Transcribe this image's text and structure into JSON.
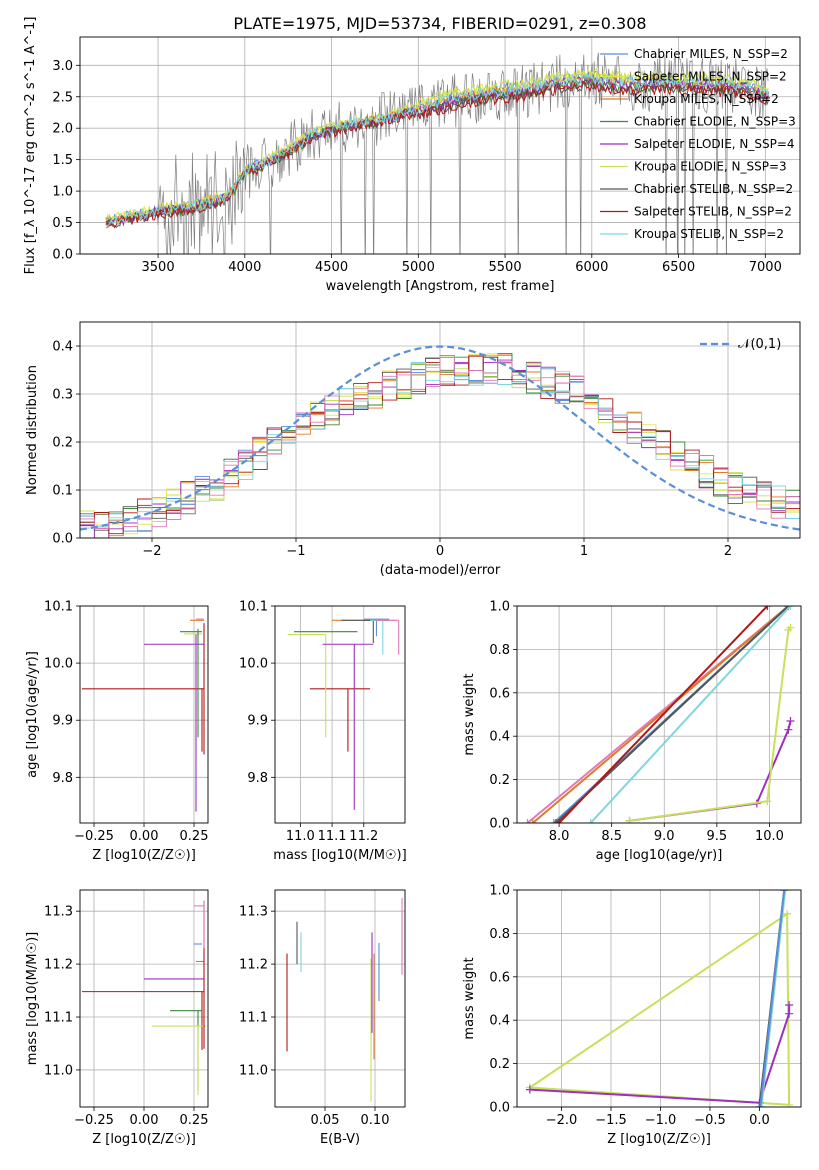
{
  "title": "PLATE=1975, MJD=53734, FIBERID=0291, z=0.308",
  "colors": {
    "chabrier_miles": "#5b8fd9",
    "salpeter_miles": "#e8e24a",
    "kroupa_miles": "#e07a2a",
    "chabrier_elodie": "#3a8a3a",
    "salpeter_elodie": "#9c2fbf",
    "kroupa_elodie": "#c8e05a",
    "chabrier_stelib": "#555555",
    "salpeter_stelib": "#b01818",
    "kroupa_stelib": "#7fd6dd",
    "extra_pink": "#e07ab8",
    "data": "#808080",
    "gaussian": "#5b8fd9",
    "grid": "#b0b0b0"
  },
  "chart_data": [
    {
      "id": "spectrum",
      "type": "line",
      "xlabel": "wavelength [Angstrom, rest frame]",
      "ylabel": "Flux [f_λ 10^-17 erg cm^-2 s^-1 A^-1]",
      "xlim": [
        3050,
        7200
      ],
      "ylim": [
        0,
        3.45
      ],
      "xticks": [
        3500,
        4000,
        4500,
        5000,
        5500,
        6000,
        6500,
        7000
      ],
      "yticks": [
        0.0,
        0.5,
        1.0,
        1.5,
        2.0,
        2.5,
        3.0
      ],
      "legend_position": "upper right",
      "continuum_x": [
        3200,
        3500,
        3700,
        3900,
        4000,
        4200,
        4400,
        4600,
        4800,
        5000,
        5200,
        5400,
        5600,
        5800,
        6000,
        6200,
        6400,
        6600,
        6800,
        7000
      ],
      "continuum_y": [
        0.5,
        0.68,
        0.75,
        0.9,
        1.3,
        1.55,
        1.9,
        2.05,
        2.15,
        2.3,
        2.45,
        2.55,
        2.6,
        2.72,
        2.78,
        2.7,
        2.72,
        2.7,
        2.68,
        2.55
      ],
      "series": [
        {
          "name": "Chabrier MILES, N_SSP=2",
          "color_key": "chabrier_miles"
        },
        {
          "name": "Salpeter MILES, N_SSP=2",
          "color_key": "salpeter_miles"
        },
        {
          "name": "Kroupa MILES, N_SSP=2",
          "color_key": "kroupa_miles"
        },
        {
          "name": "Chabrier ELODIE, N_SSP=3",
          "color_key": "chabrier_elodie"
        },
        {
          "name": "Salpeter ELODIE, N_SSP=4",
          "color_key": "salpeter_elodie"
        },
        {
          "name": "Kroupa ELODIE, N_SSP=3",
          "color_key": "kroupa_elodie"
        },
        {
          "name": "Chabrier STELIB, N_SSP=2",
          "color_key": "chabrier_stelib"
        },
        {
          "name": "Salpeter STELIB, N_SSP=2",
          "color_key": "salpeter_stelib"
        },
        {
          "name": "Kroupa STELIB, N_SSP=2",
          "color_key": "kroupa_stelib"
        }
      ]
    },
    {
      "id": "residuals",
      "type": "line",
      "xlabel": "(data-model)/error",
      "ylabel": "Normed distribution",
      "xlim": [
        -2.5,
        2.5
      ],
      "ylim": [
        0,
        0.45
      ],
      "xticks": [
        -2,
        -1,
        0,
        1,
        2
      ],
      "yticks": [
        0.0,
        0.1,
        0.2,
        0.3,
        0.4
      ],
      "legend": "𝒩(0,1)",
      "legend_position": "upper right",
      "gaussian": {
        "mean": 0,
        "sigma": 1
      },
      "hist_bin_width": 0.1,
      "hist_envelope_x": [
        -2.5,
        -2.0,
        -1.5,
        -1.0,
        -0.5,
        0.0,
        0.5,
        1.0,
        1.5,
        2.0,
        2.5
      ],
      "hist_envelope_y": [
        0.02,
        0.05,
        0.12,
        0.23,
        0.3,
        0.35,
        0.35,
        0.3,
        0.2,
        0.11,
        0.06
      ]
    },
    {
      "id": "age_vs_Z",
      "type": "scatter",
      "xlabel": "Z [log10(Z/Z☉)]",
      "ylabel": "age  [log10(age/yr)]",
      "xlim": [
        -0.32,
        0.32
      ],
      "ylim": [
        9.72,
        10.1
      ],
      "xticks": [
        -0.25,
        0.0,
        0.25
      ],
      "yticks": [
        9.8,
        9.9,
        10.0,
        10.1
      ],
      "points": [
        {
          "color_key": "salpeter_stelib",
          "x": 0.29,
          "y": 9.955,
          "xerr_low": 0.6,
          "xerr_high": 0.01,
          "yerr_low": 0.11,
          "yerr_high": 0.0
        },
        {
          "color_key": "salpeter_elodie",
          "x": 0.29,
          "y": 10.033,
          "xerr_low": 0.29,
          "xerr_high": 0.01,
          "yerr_low": 0.0,
          "yerr_high": 0.0
        },
        {
          "color_key": "kroupa_elodie",
          "x": 0.27,
          "y": 10.051,
          "xerr_low": 0.07,
          "xerr_high": 0.02,
          "yerr_low": 0.0,
          "yerr_high": 0.0
        },
        {
          "color_key": "chabrier_elodie",
          "x": 0.27,
          "y": 10.055,
          "xerr_low": 0.09,
          "xerr_high": 0.02,
          "yerr_low": 0.0,
          "yerr_high": 0.0
        },
        {
          "color_key": "kroupa_miles",
          "x": 0.29,
          "y": 10.075,
          "xerr_low": 0.06,
          "xerr_high": 0.01,
          "yerr_low": 0.0,
          "yerr_high": 0.0
        },
        {
          "color_key": "extra_pink",
          "x": 0.3,
          "y": 10.077,
          "xerr_low": 0.04,
          "xerr_high": 0.0,
          "yerr_low": 0.0,
          "yerr_high": 0.0
        },
        {
          "color_key": "salpeter_elodie",
          "x": 0.26,
          "y": 10.05,
          "xerr_low": 0.0,
          "xerr_high": 0.0,
          "yerr_low": 0.31,
          "yerr_high": 0.0
        },
        {
          "color_key": "chabrier_elodie",
          "x": 0.27,
          "y": 10.06,
          "xerr_low": 0.0,
          "xerr_high": 0.0,
          "yerr_low": 0.19,
          "yerr_high": 0.0
        },
        {
          "color_key": "salpeter_stelib",
          "x": 0.3,
          "y": 10.07,
          "xerr_low": 0.0,
          "xerr_high": 0.0,
          "yerr_low": 0.23,
          "yerr_high": 0.0
        }
      ]
    },
    {
      "id": "age_vs_mass",
      "type": "scatter",
      "xlabel": "mass [log10(M/M☉)]",
      "ylabel": "",
      "xlim": [
        10.92,
        11.33
      ],
      "ylim": [
        9.72,
        10.1
      ],
      "xticks": [
        11.0,
        11.1,
        11.2
      ],
      "yticks": [
        9.8,
        9.9,
        10.0,
        10.1
      ],
      "points": [
        {
          "color_key": "salpeter_stelib",
          "x": 11.15,
          "y": 9.955,
          "xerr_low": 0.12,
          "xerr_high": 0.07,
          "yerr_low": 0.11,
          "yerr_high": 0.0
        },
        {
          "color_key": "kroupa_elodie",
          "x": 11.08,
          "y": 10.05,
          "xerr_low": 0.12,
          "xerr_high": 0.0,
          "yerr_low": 0.18,
          "yerr_high": 0.0
        },
        {
          "color_key": "chabrier_elodie",
          "x": 11.12,
          "y": 10.055,
          "xerr_low": 0.14,
          "xerr_high": 0.06,
          "yerr_low": 0.0,
          "yerr_high": 0.0
        },
        {
          "color_key": "salpeter_elodie",
          "x": 11.17,
          "y": 10.033,
          "xerr_low": 0.1,
          "xerr_high": 0.06,
          "yerr_low": 0.29,
          "yerr_high": 0.0
        },
        {
          "color_key": "kroupa_miles",
          "x": 11.2,
          "y": 10.075,
          "xerr_low": 0.1,
          "xerr_high": 0.05,
          "yerr_low": 0.0,
          "yerr_high": 0.0
        },
        {
          "color_key": "chabrier_stelib",
          "x": 11.23,
          "y": 10.075,
          "xerr_low": 0.1,
          "xerr_high": 0.05,
          "yerr_low": 0.04,
          "yerr_high": 0.0
        },
        {
          "color_key": "chabrier_miles",
          "x": 11.24,
          "y": 10.077,
          "xerr_low": 0.04,
          "xerr_high": 0.04,
          "yerr_low": 0.03,
          "yerr_high": 0.0
        },
        {
          "color_key": "kroupa_stelib",
          "x": 11.26,
          "y": 10.075,
          "xerr_low": 0.04,
          "xerr_high": 0.04,
          "yerr_low": 0.06,
          "yerr_high": 0.0
        },
        {
          "color_key": "extra_pink",
          "x": 11.31,
          "y": 10.075,
          "xerr_low": 0.07,
          "xerr_high": 0.0,
          "yerr_low": 0.06,
          "yerr_high": 0.0
        }
      ]
    },
    {
      "id": "weight_vs_age",
      "type": "line",
      "xlabel": "age  [log10(age/yr)]",
      "ylabel": "mass weight",
      "xlim": [
        7.6,
        10.3
      ],
      "ylim": [
        0,
        1.0
      ],
      "xticks": [
        8.0,
        8.5,
        9.0,
        9.5,
        10.0
      ],
      "yticks": [
        0.0,
        0.2,
        0.4,
        0.6,
        0.8,
        1.0
      ],
      "series": [
        {
          "color_key": "extra_pink",
          "x": [
            7.7,
            10.18
          ],
          "y": [
            0.0,
            1.0
          ]
        },
        {
          "color_key": "kroupa_miles",
          "x": [
            7.75,
            10.18
          ],
          "y": [
            0.0,
            1.0
          ]
        },
        {
          "color_key": "chabrier_miles",
          "x": [
            7.95,
            10.18
          ],
          "y": [
            0.0,
            1.0
          ]
        },
        {
          "color_key": "chabrier_stelib",
          "x": [
            7.97,
            10.18
          ],
          "y": [
            0.0,
            1.0
          ]
        },
        {
          "color_key": "salpeter_stelib",
          "x": [
            8.0,
            9.98
          ],
          "y": [
            0.0,
            1.0
          ]
        },
        {
          "color_key": "kroupa_stelib",
          "x": [
            8.3,
            10.2
          ],
          "y": [
            0.0,
            1.0
          ]
        },
        {
          "color_key": "salpeter_elodie",
          "x": [
            8.67,
            9.88,
            10.18,
            10.2
          ],
          "y": [
            0.01,
            0.09,
            0.43,
            0.47
          ]
        },
        {
          "color_key": "kroupa_elodie",
          "x": [
            8.67,
            9.98,
            10.18,
            10.2
          ],
          "y": [
            0.01,
            0.1,
            0.89,
            0.9
          ]
        }
      ]
    },
    {
      "id": "mass_vs_Z",
      "type": "scatter",
      "xlabel": "Z [log10(Z/Z☉)]",
      "ylabel": "mass [log10(M/M☉)]",
      "xlim": [
        -0.32,
        0.32
      ],
      "ylim": [
        10.93,
        11.34
      ],
      "xticks": [
        -0.25,
        0.0,
        0.25
      ],
      "yticks": [
        11.0,
        11.1,
        11.2,
        11.3
      ],
      "points": [
        {
          "color_key": "salpeter_stelib",
          "x": 0.29,
          "y": 11.148,
          "xerr_low": 0.6,
          "xerr_high": 0.01,
          "yerr_low": 0.11,
          "yerr_high": 0.0
        },
        {
          "color_key": "salpeter_elodie",
          "x": 0.29,
          "y": 11.172,
          "xerr_low": 0.29,
          "xerr_high": 0.01,
          "yerr_low": 0.0,
          "yerr_high": 0.0
        },
        {
          "color_key": "chabrier_elodie",
          "x": 0.27,
          "y": 11.112,
          "xerr_low": 0.14,
          "xerr_high": 0.02,
          "yerr_low": 0.15,
          "yerr_high": 0.0
        },
        {
          "color_key": "kroupa_elodie",
          "x": 0.27,
          "y": 11.083,
          "xerr_low": 0.23,
          "xerr_high": 0.04,
          "yerr_low": 0.13,
          "yerr_high": 0.0
        },
        {
          "color_key": "kroupa_miles",
          "x": 0.29,
          "y": 11.205,
          "xerr_low": 0.03,
          "xerr_high": 0.01,
          "yerr_low": 0.0,
          "yerr_high": 0.0
        },
        {
          "color_key": "chabrier_miles",
          "x": 0.28,
          "y": 11.238,
          "xerr_low": 0.03,
          "xerr_high": 0.01,
          "yerr_low": 0.0,
          "yerr_high": 0.0
        },
        {
          "color_key": "extra_pink",
          "x": 0.3,
          "y": 11.31,
          "xerr_low": 0.05,
          "xerr_high": 0.0,
          "yerr_low": 0.0,
          "yerr_high": 0.0
        },
        {
          "color_key": "salpeter_stelib",
          "x": 0.3,
          "y": 11.2,
          "xerr_low": 0.0,
          "xerr_high": 0.0,
          "yerr_low": 0.16,
          "yerr_high": 0.12
        },
        {
          "color_key": "extra_pink",
          "x": 0.3,
          "y": 11.28,
          "xerr_low": 0.0,
          "xerr_high": 0.0,
          "yerr_low": 0.05,
          "yerr_high": 0.04
        }
      ]
    },
    {
      "id": "mass_vs_ebv",
      "type": "scatter",
      "xlabel": "E(B-V)",
      "ylabel": "",
      "xlim": [
        0.0,
        0.13
      ],
      "ylim": [
        10.93,
        11.34
      ],
      "xticks": [
        0.05,
        0.1
      ],
      "yticks": [
        11.0,
        11.1,
        11.2,
        11.3
      ],
      "points": [
        {
          "color_key": "salpeter_stelib",
          "x": 0.012,
          "y": 11.13,
          "xerr_low": 0.0,
          "xerr_high": 0.0,
          "yerr_low": 0.095,
          "yerr_high": 0.09
        },
        {
          "color_key": "chabrier_stelib",
          "x": 0.022,
          "y": 11.24,
          "xerr_low": 0.0,
          "xerr_high": 0.0,
          "yerr_low": 0.04,
          "yerr_high": 0.04
        },
        {
          "color_key": "kroupa_stelib",
          "x": 0.026,
          "y": 11.225,
          "xerr_low": 0.0,
          "xerr_high": 0.0,
          "yerr_low": 0.04,
          "yerr_high": 0.035
        },
        {
          "color_key": "kroupa_elodie",
          "x": 0.096,
          "y": 11.08,
          "xerr_low": 0.0,
          "xerr_high": 0.0,
          "yerr_low": 0.14,
          "yerr_high": 0.13
        },
        {
          "color_key": "salpeter_elodie",
          "x": 0.097,
          "y": 11.17,
          "xerr_low": 0.0,
          "xerr_high": 0.0,
          "yerr_low": 0.1,
          "yerr_high": 0.09
        },
        {
          "color_key": "kroupa_miles",
          "x": 0.099,
          "y": 11.12,
          "xerr_low": 0.0,
          "xerr_high": 0.0,
          "yerr_low": 0.1,
          "yerr_high": 0.1
        },
        {
          "color_key": "chabrier_miles",
          "x": 0.104,
          "y": 11.19,
          "xerr_low": 0.0,
          "xerr_high": 0.0,
          "yerr_low": 0.06,
          "yerr_high": 0.05
        },
        {
          "color_key": "extra_pink",
          "x": 0.127,
          "y": 11.25,
          "xerr_low": 0.0,
          "xerr_high": 0.0,
          "yerr_low": 0.07,
          "yerr_high": 0.075
        }
      ]
    },
    {
      "id": "weight_vs_Z",
      "type": "line",
      "xlabel": "Z [log10(Z/Z☉)]",
      "ylabel": "mass weight",
      "xlim": [
        -2.45,
        0.42
      ],
      "ylim": [
        0,
        1.0
      ],
      "xticks": [
        -2.0,
        -1.5,
        -1.0,
        -0.5,
        0.0
      ],
      "yticks": [
        0.0,
        0.2,
        0.4,
        0.6,
        0.8,
        1.0
      ],
      "series": [
        {
          "color_key": "kroupa_elodie",
          "x": [
            -2.32,
            0.28,
            0.3,
            -2.32
          ],
          "y": [
            0.09,
            0.89,
            0.01,
            0.09
          ]
        },
        {
          "color_key": "salpeter_elodie",
          "x": [
            -2.32,
            0.0,
            0.3,
            0.3
          ],
          "y": [
            0.08,
            0.02,
            0.43,
            0.47
          ]
        },
        {
          "color_key": "chabrier_stelib",
          "x": [
            0.0,
            0.25
          ],
          "y": [
            0.0,
            1.0
          ]
        },
        {
          "color_key": "kroupa_stelib",
          "x": [
            0.02,
            0.26
          ],
          "y": [
            0.0,
            1.0
          ]
        },
        {
          "color_key": "chabrier_miles",
          "x": [
            0.01,
            0.25
          ],
          "y": [
            0.0,
            1.0
          ]
        }
      ]
    }
  ]
}
